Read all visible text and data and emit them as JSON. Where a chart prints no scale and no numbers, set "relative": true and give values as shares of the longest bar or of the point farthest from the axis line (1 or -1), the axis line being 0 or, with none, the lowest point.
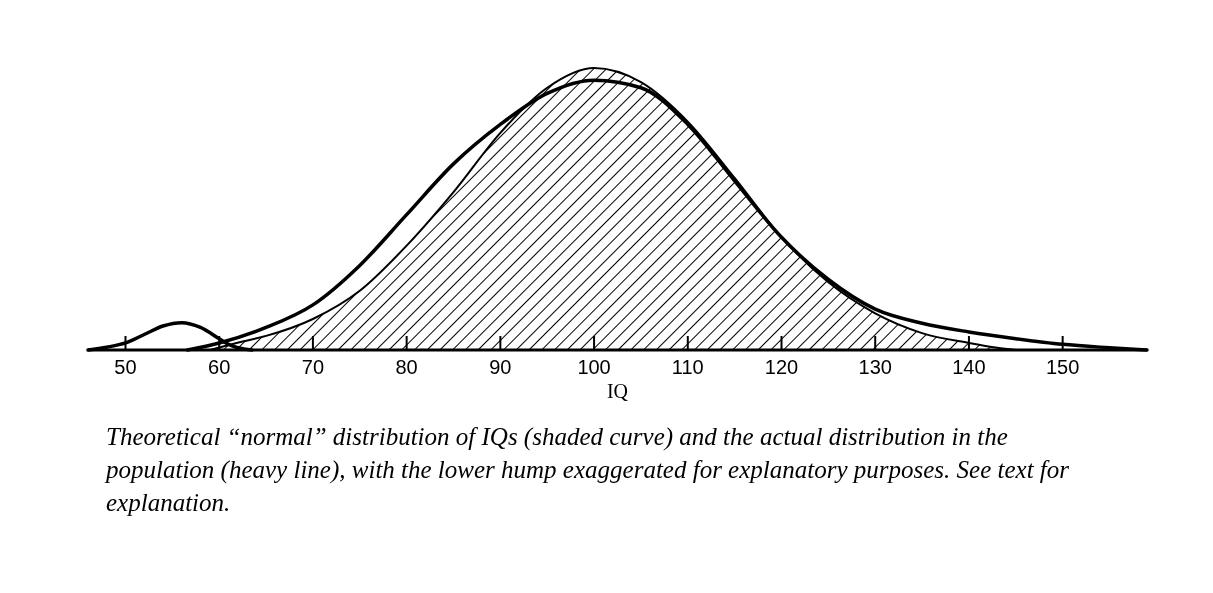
{
  "chart_data": {
    "type": "area",
    "relative": true,
    "xlabel": "IQ",
    "xlim": [
      46,
      159
    ],
    "xticks": [
      50,
      60,
      70,
      80,
      90,
      100,
      110,
      120,
      130,
      140,
      150
    ],
    "series": [
      {
        "type": "area",
        "color": "#000000",
        "x": [
          59,
          62.5,
          65,
          70,
          75,
          80,
          85,
          90,
          95,
          100,
          105,
          110,
          115,
          120,
          125,
          130,
          135,
          140,
          143,
          145
        ],
        "values": [
          0,
          0.03,
          0.05,
          0.11,
          0.21,
          0.37,
          0.56,
          0.77,
          0.93,
          1,
          0.95,
          0.81,
          0.61,
          0.4,
          0.24,
          0.13,
          0.06,
          0.025,
          0.008,
          0
        ]
      },
      {
        "type": "line",
        "color": "#000000",
        "x": [
          56.6,
          60,
          65,
          70,
          75,
          80,
          85,
          90,
          95,
          100,
          105,
          110,
          115,
          120,
          125,
          130,
          135,
          140,
          145,
          150,
          155,
          159
        ],
        "values": [
          0,
          0.025,
          0.08,
          0.16,
          0.3,
          0.48,
          0.66,
          0.8,
          0.91,
          0.957,
          0.93,
          0.8,
          0.6,
          0.4,
          0.25,
          0.145,
          0.095,
          0.064,
          0.04,
          0.02,
          0.008,
          0
        ]
      },
      {
        "type": "line",
        "color": "#000000",
        "x": [
          46,
          48,
          50,
          52,
          54,
          56,
          58,
          60,
          61,
          62,
          63.5
        ],
        "values": [
          0,
          0.01,
          0.025,
          0.055,
          0.085,
          0.097,
          0.08,
          0.04,
          0.02,
          0.008,
          0
        ]
      }
    ],
    "annotations": [
      "Theoretical “normal” distribution of IQs (shaded curve) and the actual distribution in the population (heavy line), with the lower hump exaggerated for explanatory purposes. See text for explanation."
    ]
  }
}
